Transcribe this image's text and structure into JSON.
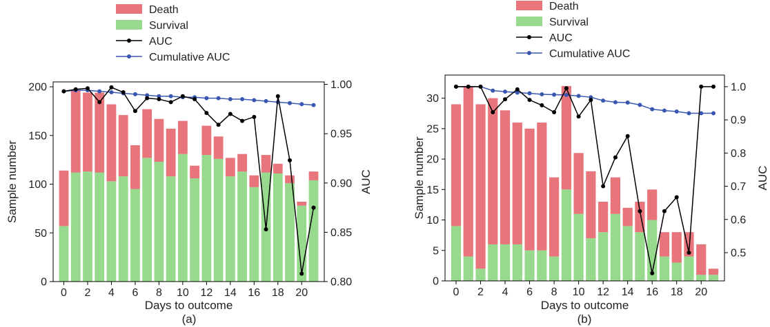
{
  "legend": [
    {
      "name": "Death",
      "kind": "patch",
      "color": "#e8747c"
    },
    {
      "name": "Survival",
      "kind": "patch",
      "color": "#97d98d"
    },
    {
      "name": "AUC",
      "kind": "line",
      "color": "#000000"
    },
    {
      "name": "Cumulative AUC",
      "kind": "line",
      "color": "#3a57b0"
    }
  ],
  "colors": {
    "death": "#e8747c",
    "survival": "#97d98d",
    "auc": "#000000",
    "cumulative_auc": "#3a57b0"
  },
  "chart_data": [
    {
      "type": "bar",
      "stacked": true,
      "panel_label": "(a)",
      "xlabel": "Days to outcome",
      "ylabel": "Sample number",
      "y2label": "AUC",
      "legend_position": "top-center",
      "grid": false,
      "x": [
        0,
        1,
        2,
        3,
        4,
        5,
        6,
        7,
        8,
        9,
        10,
        11,
        12,
        13,
        14,
        15,
        16,
        17,
        18,
        19,
        20,
        21
      ],
      "xticks": [
        0,
        2,
        4,
        6,
        8,
        10,
        12,
        14,
        16,
        18,
        20
      ],
      "xlim": [
        -0.9,
        21.9
      ],
      "ylim": [
        0,
        205
      ],
      "yticks": [
        0,
        50,
        100,
        150,
        200
      ],
      "y2lim": [
        0.8,
        1.0025
      ],
      "y2ticks": [
        0.8,
        0.85,
        0.9,
        0.95,
        1.0
      ],
      "y2ticklabels": [
        "0.80",
        "0.85",
        "0.90",
        "0.95",
        "1.00"
      ],
      "series": [
        {
          "name": "Survival",
          "axis": "left",
          "values": [
            57,
            112,
            113,
            112,
            103,
            108,
            95,
            127,
            123,
            108,
            131,
            106,
            130,
            126,
            108,
            113,
            97,
            112,
            111,
            101,
            78,
            104
          ]
        },
        {
          "name": "Death",
          "axis": "left",
          "values": [
            57,
            85,
            81,
            82,
            79,
            63,
            45,
            50,
            44,
            49,
            34,
            13,
            30,
            23,
            19,
            18,
            12,
            18,
            10,
            8,
            4,
            9
          ]
        },
        {
          "name": "AUC",
          "axis": "right",
          "values": [
            0.993,
            0.995,
            0.996,
            0.982,
            0.997,
            0.992,
            0.973,
            0.986,
            0.985,
            0.982,
            0.988,
            0.985,
            0.971,
            0.959,
            0.97,
            0.963,
            0.967,
            0.853,
            0.988,
            0.923,
            0.808,
            0.875
          ]
        },
        {
          "name": "Cumulative AUC",
          "axis": "right",
          "values": [
            0.993,
            0.994,
            0.994,
            0.993,
            0.992,
            0.991,
            0.99,
            0.989,
            0.988,
            0.988,
            0.987,
            0.987,
            0.986,
            0.986,
            0.985,
            0.985,
            0.984,
            0.983,
            0.982,
            0.981,
            0.98,
            0.979
          ]
        }
      ]
    },
    {
      "type": "bar",
      "stacked": true,
      "panel_label": "(b)",
      "xlabel": "Days to outcome",
      "ylabel": "Sample number",
      "y2label": "AUC",
      "legend_position": "top-center",
      "grid": false,
      "x": [
        0,
        1,
        2,
        3,
        4,
        5,
        6,
        7,
        8,
        9,
        10,
        11,
        12,
        13,
        14,
        15,
        16,
        17,
        18,
        19,
        20,
        21
      ],
      "xticks": [
        0,
        2,
        4,
        6,
        8,
        10,
        12,
        14,
        16,
        18,
        20
      ],
      "xlim": [
        -0.9,
        21.9
      ],
      "ylim": [
        0,
        33.8
      ],
      "yticks": [
        0,
        5,
        10,
        15,
        20,
        25,
        30
      ],
      "y2lim": [
        0.415,
        1.035
      ],
      "y2ticks": [
        0.5,
        0.6,
        0.7,
        0.8,
        0.9,
        1.0
      ],
      "y2ticklabels": [
        "0.5",
        "0.6",
        "0.7",
        "0.8",
        "0.9",
        "1.0"
      ],
      "series": [
        {
          "name": "Survival",
          "axis": "left",
          "values": [
            9,
            4,
            2,
            6,
            6,
            6,
            5,
            5,
            4,
            15,
            11,
            7,
            8,
            11,
            9,
            8,
            10,
            4,
            3,
            4,
            1,
            1
          ]
        },
        {
          "name": "Death",
          "axis": "left",
          "values": [
            20,
            28,
            27,
            24,
            22,
            20,
            20,
            21,
            13,
            17,
            10,
            11,
            5,
            6,
            3,
            5,
            5,
            4,
            5,
            4,
            5,
            1
          ]
        },
        {
          "name": "AUC",
          "axis": "right",
          "values": [
            1.0,
            1.0,
            1.0,
            0.923,
            0.962,
            0.992,
            0.96,
            0.944,
            0.923,
            0.995,
            0.91,
            0.96,
            0.7,
            0.787,
            0.851,
            0.625,
            0.438,
            0.625,
            0.667,
            0.5,
            1.0,
            1.0
          ]
        },
        {
          "name": "Cumulative AUC",
          "axis": "right",
          "values": [
            1.0,
            1.0,
            1.0,
            0.988,
            0.985,
            0.982,
            0.98,
            0.977,
            0.976,
            0.975,
            0.972,
            0.968,
            0.958,
            0.953,
            0.952,
            0.945,
            0.932,
            0.928,
            0.925,
            0.92,
            0.92,
            0.92
          ]
        }
      ]
    }
  ]
}
